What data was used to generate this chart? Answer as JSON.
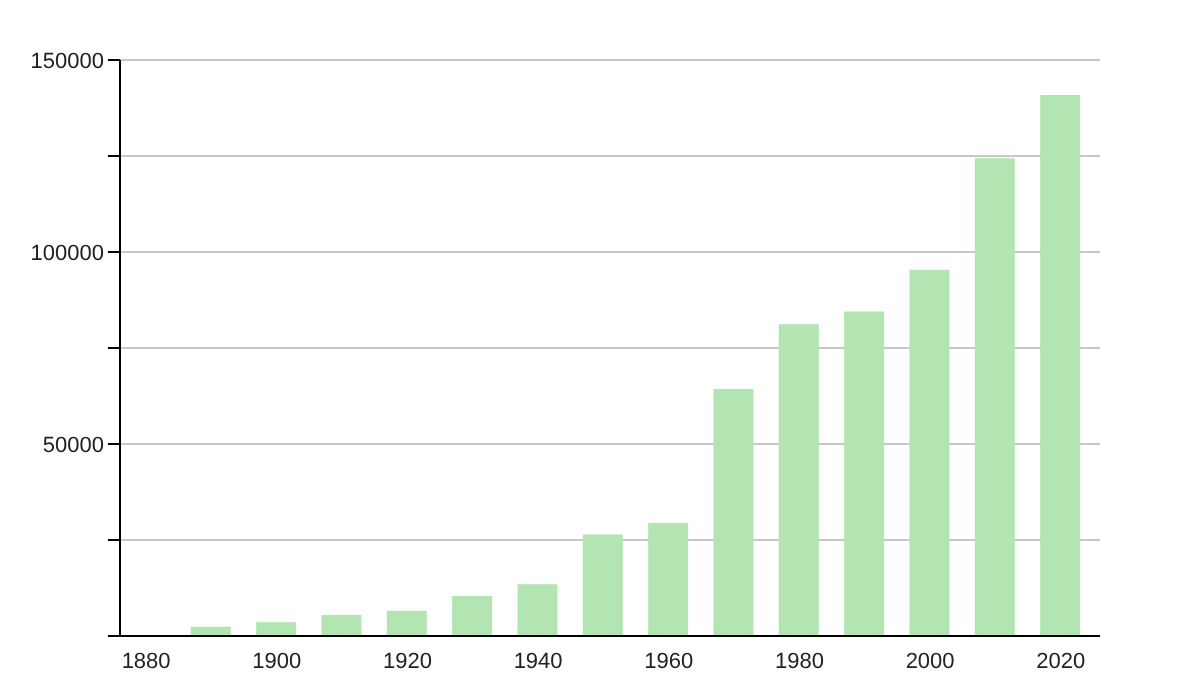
{
  "chart_data": {
    "type": "bar",
    "x": [
      1890,
      1900,
      1910,
      1920,
      1930,
      1940,
      1950,
      1960,
      1970,
      1980,
      1990,
      2000,
      2010,
      2020
    ],
    "values": [
      2400,
      3600,
      5500,
      6600,
      10400,
      13500,
      26400,
      29400,
      64300,
      81200,
      84500,
      95400,
      124400,
      140900
    ],
    "color": "#b2e5b2",
    "xlim": [
      1876,
      2026
    ],
    "xticks": [
      1880,
      1900,
      1920,
      1940,
      1960,
      1980,
      2000,
      2020
    ],
    "ylim": [
      0,
      150000
    ],
    "yticks": [
      {
        "value": 0,
        "label": null
      },
      {
        "value": 25000,
        "label": null
      },
      50000,
      {
        "value": 75000,
        "label": null
      },
      100000,
      {
        "value": 125000,
        "label": null
      },
      150000
    ],
    "grid": "y"
  }
}
